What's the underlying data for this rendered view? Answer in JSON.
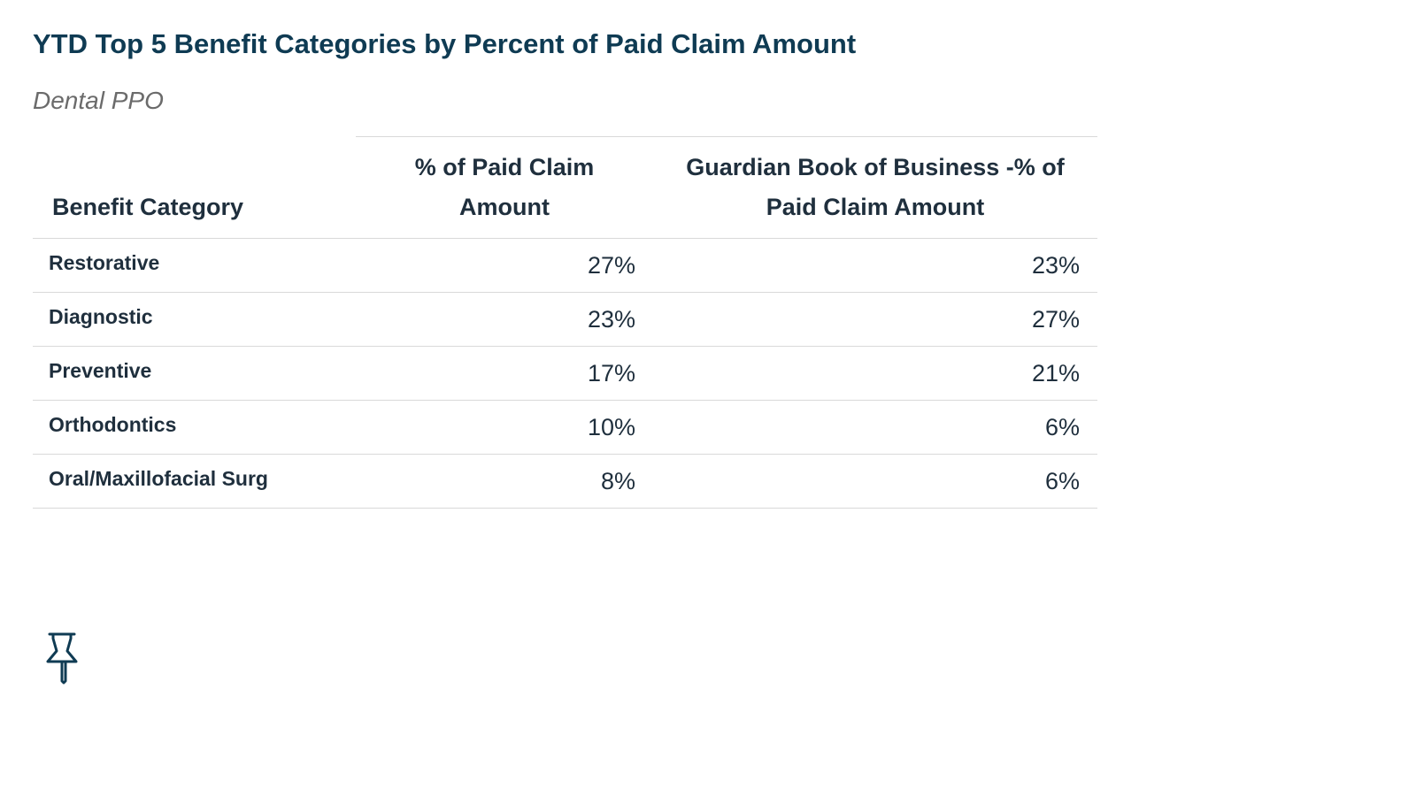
{
  "header": {
    "title": "YTD Top 5 Benefit Categories by Percent of Paid Claim Amount",
    "subtitle": "Dental PPO"
  },
  "table": {
    "columns": [
      "Benefit Category",
      "% of Paid Claim Amount",
      "Guardian Book of Business -% of Paid Claim Amount"
    ],
    "rows": [
      [
        "Restorative",
        "27%",
        "23%"
      ],
      [
        "Diagnostic",
        "23%",
        "27%"
      ],
      [
        "Preventive",
        "17%",
        "21%"
      ],
      [
        "Orthodontics",
        "10%",
        "6%"
      ],
      [
        "Oral/Maxillofacial Surg",
        "8%",
        "6%"
      ]
    ]
  }
}
